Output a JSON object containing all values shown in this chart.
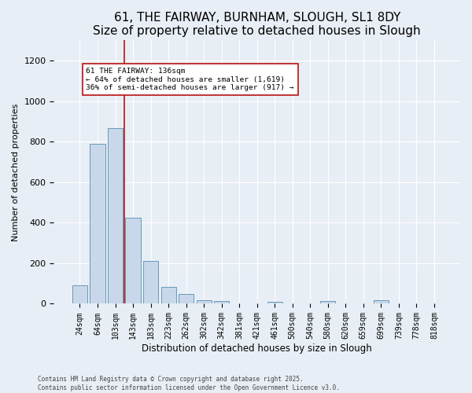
{
  "title": "61, THE FAIRWAY, BURNHAM, SLOUGH, SL1 8DY",
  "subtitle": "Size of property relative to detached houses in Slough",
  "xlabel": "Distribution of detached houses by size in Slough",
  "ylabel": "Number of detached properties",
  "categories": [
    "24sqm",
    "64sqm",
    "103sqm",
    "143sqm",
    "183sqm",
    "223sqm",
    "262sqm",
    "302sqm",
    "342sqm",
    "381sqm",
    "421sqm",
    "461sqm",
    "500sqm",
    "540sqm",
    "580sqm",
    "620sqm",
    "659sqm",
    "699sqm",
    "739sqm",
    "778sqm",
    "818sqm"
  ],
  "values": [
    90,
    790,
    865,
    425,
    210,
    85,
    50,
    18,
    12,
    0,
    0,
    10,
    0,
    0,
    15,
    0,
    0,
    18,
    0,
    0,
    0
  ],
  "bar_color": "#c8d8ea",
  "bar_edge_color": "#6699bb",
  "background_color": "#e8eef5",
  "vline_x": 2.5,
  "vline_color": "#bb1111",
  "annotation_text": "61 THE FAIRWAY: 136sqm\n← 64% of detached houses are smaller (1,619)\n36% of semi-detached houses are larger (917) →",
  "footer_line1": "Contains HM Land Registry data © Crown copyright and database right 2025.",
  "footer_line2": "Contains public sector information licensed under the Open Government Licence v3.0.",
  "ylim": [
    0,
    1300
  ],
  "yticks": [
    0,
    200,
    400,
    600,
    800,
    1000,
    1200
  ]
}
